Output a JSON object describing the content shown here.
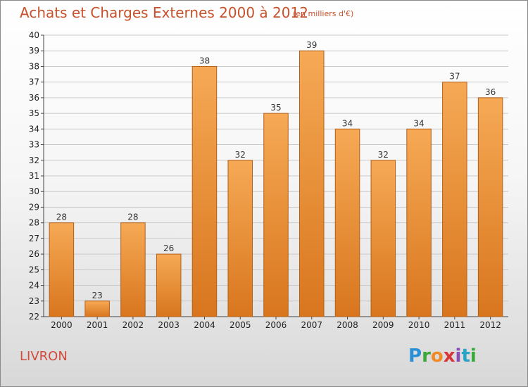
{
  "header": {
    "title": "Achats et Charges Externes 2000 à 2012",
    "subtitle": "(en milliers d'€)"
  },
  "footer": {
    "location": "LIVRON",
    "logo_text": "Proxiti"
  },
  "colors": {
    "bar_top": "#f6a955",
    "bar_bottom": "#d8761e",
    "bar_edge": "#b45f17",
    "grid": "#c9c9c9",
    "title": "#c8502a"
  },
  "chart_data": {
    "type": "bar",
    "title": "Achats et Charges Externes 2000 à 2012",
    "subtitle": "(en milliers d'€)",
    "xlabel": "",
    "ylabel": "",
    "categories": [
      "2000",
      "2001",
      "2002",
      "2003",
      "2004",
      "2005",
      "2006",
      "2007",
      "2008",
      "2009",
      "2010",
      "2011",
      "2012"
    ],
    "values": [
      28,
      23,
      28,
      26,
      38,
      32,
      35,
      39,
      34,
      32,
      34,
      37,
      36
    ],
    "ylim": [
      22,
      40
    ],
    "yticks": [
      22,
      23,
      24,
      25,
      26,
      27,
      28,
      29,
      30,
      31,
      32,
      33,
      34,
      35,
      36,
      37,
      38,
      39,
      40
    ],
    "grid": true,
    "legend": "none"
  }
}
